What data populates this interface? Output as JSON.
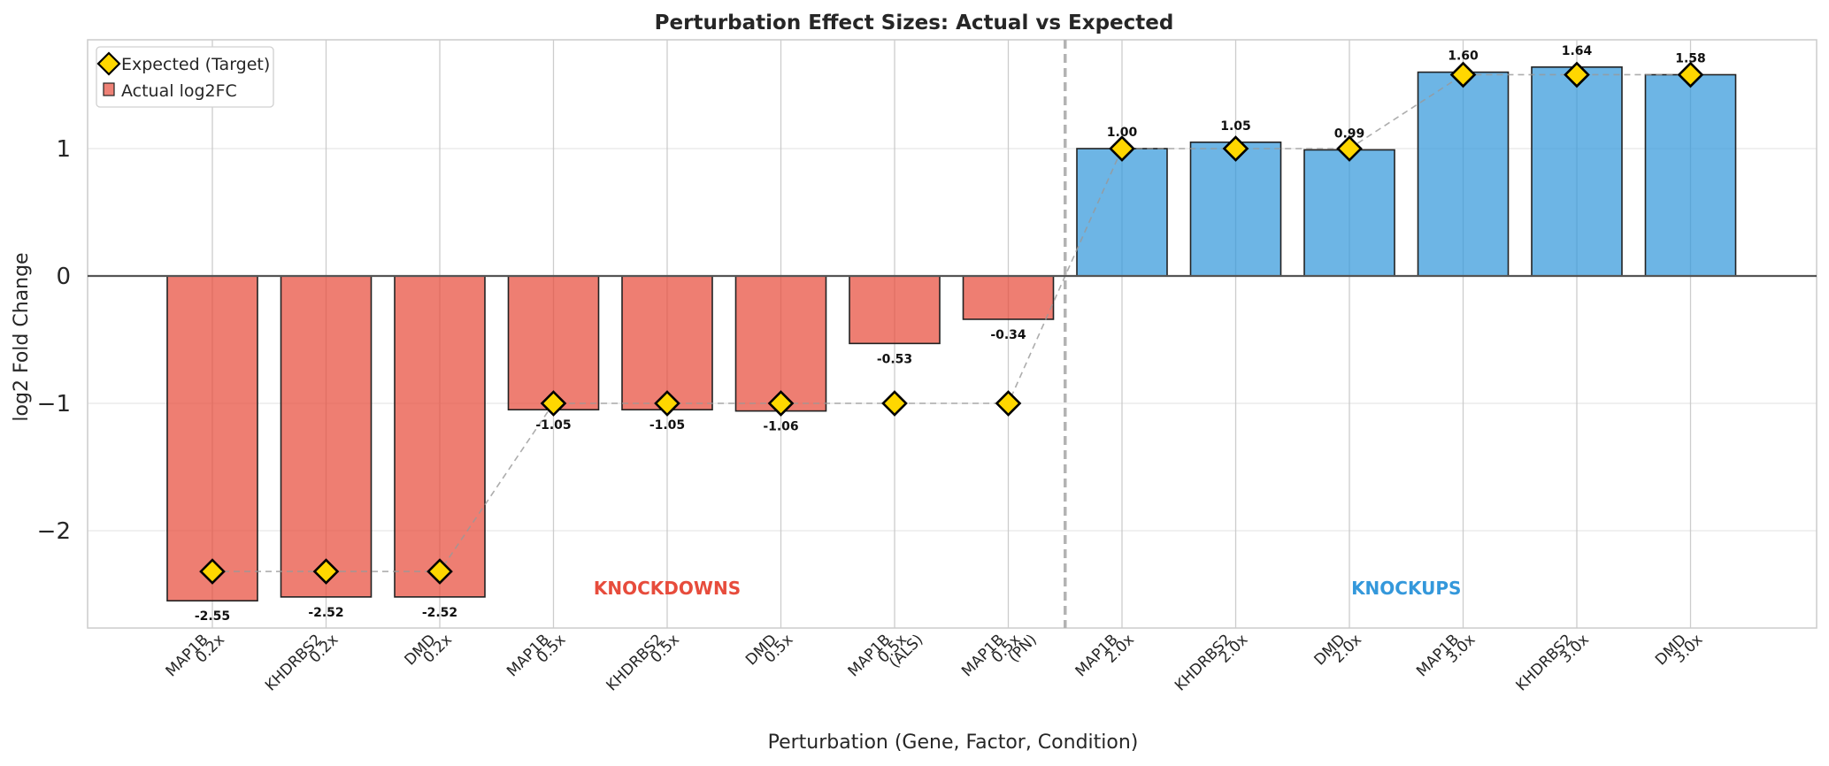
{
  "chart_data": {
    "type": "bar",
    "title": "Perturbation Effect Sizes: Actual vs Expected",
    "xlabel": "Perturbation (Gene, Factor, Condition)",
    "ylabel": "log2 Fold Change",
    "ylim": [
      -2.77,
      1.85
    ],
    "yticks": [
      -2,
      -1,
      0,
      1
    ],
    "ytick_labels": [
      "−2",
      "−1",
      "0",
      "1"
    ],
    "grid": true,
    "legend_position": "top-left",
    "categories": [
      "MAP1B\n0.2x",
      "KHDRBS2\n0.2x",
      "DMD\n0.2x",
      "MAP1B\n0.5x",
      "KHDRBS2\n0.5x",
      "DMD\n0.5x",
      "MAP1B\n0.5x\n(ALS)",
      "MAP1B\n0.5x\n(PN)",
      "MAP1B\n2.0x",
      "KHDRBS2\n2.0x",
      "DMD\n2.0x",
      "MAP1B\n3.0x",
      "KHDRBS2\n3.0x",
      "DMD\n3.0x"
    ],
    "series": [
      {
        "name": "Actual log2FC",
        "type": "bar",
        "values": [
          -2.55,
          -2.52,
          -2.52,
          -1.05,
          -1.05,
          -1.06,
          -0.53,
          -0.34,
          1.0,
          1.05,
          0.99,
          1.6,
          1.64,
          1.58
        ],
        "value_labels": [
          "-2.55",
          "-2.52",
          "-2.52",
          "-1.05",
          "-1.05",
          "-1.06",
          "-0.53",
          "-0.34",
          "1.00",
          "1.05",
          "0.99",
          "1.60",
          "1.64",
          "1.58"
        ]
      },
      {
        "name": "Expected (Target)",
        "type": "line-marker",
        "values": [
          -2.32,
          -2.32,
          -2.32,
          -1.0,
          -1.0,
          -1.0,
          -1.0,
          -1.0,
          1.0,
          1.0,
          1.0,
          1.58,
          1.58,
          1.58
        ]
      }
    ],
    "region_labels": [
      {
        "text": "KNOCKDOWNS",
        "color": "#e74c3c"
      },
      {
        "text": "KNOCKUPS",
        "color": "#3498db"
      }
    ],
    "colors": {
      "knockdown_bar": "#e74c3c",
      "knockup_bar": "#3498db",
      "expected_marker": "#ffd700",
      "bar_edge": "#222222",
      "grid": "#e6e6e6",
      "vgrid": "#cccccc"
    }
  }
}
